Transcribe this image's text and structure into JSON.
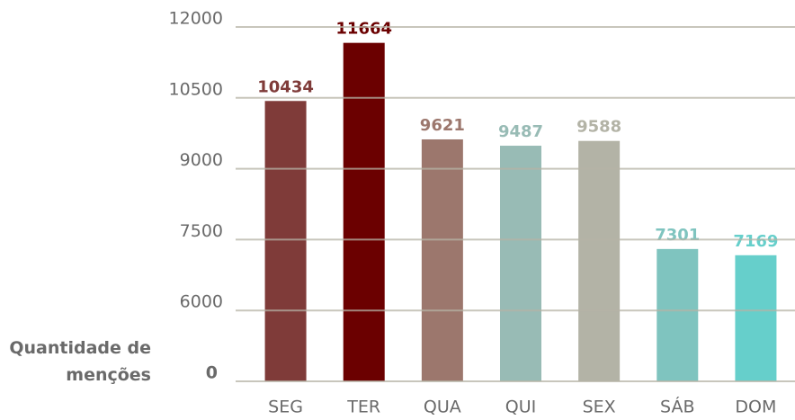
{
  "chart_data": {
    "type": "bar",
    "ylabel": "Quantidade de menções",
    "categories": [
      "SEG",
      "TER",
      "QUA",
      "QUI",
      "SEX",
      "SÁB",
      "DOM"
    ],
    "values": [
      10434,
      11664,
      9621,
      9487,
      9588,
      7301,
      7169
    ],
    "colors": [
      "#7f3b39",
      "#6b0000",
      "#9c776d",
      "#98bbb5",
      "#b3b3a6",
      "#7fc4bf",
      "#66cfcb"
    ],
    "ylim": [
      0,
      12000
    ],
    "yticks": [
      0,
      6000,
      7500,
      9000,
      10500,
      12000
    ],
    "grid": true
  }
}
